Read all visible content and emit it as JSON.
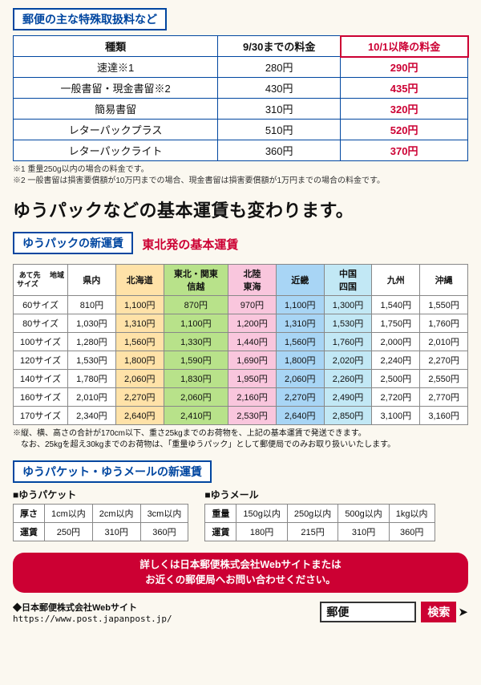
{
  "section1": {
    "title": "郵便の主な特殊取扱料など",
    "headers": [
      "種類",
      "9/30までの料金",
      "10/1以降の料金"
    ],
    "rows": [
      {
        "name": "速達※1",
        "before": "280円",
        "after": "290円"
      },
      {
        "name": "一般書留・現金書留※2",
        "before": "430円",
        "after": "435円"
      },
      {
        "name": "簡易書留",
        "before": "310円",
        "after": "320円"
      },
      {
        "name": "レターパックプラス",
        "before": "510円",
        "after": "520円"
      },
      {
        "name": "レターパックライト",
        "before": "360円",
        "after": "370円"
      }
    ],
    "note1": "※1 重量250g以内の場合の料金です。",
    "note2": "※2 一般書留は損害要償額が10万円までの場合、現金書留は損害要償額が1万円までの場合の料金です。"
  },
  "bigHeading": "ゆうパックなどの基本運賃も変わります。",
  "fare": {
    "title": "ゆうパックの新運賃",
    "subtitle": "東北発の基本運賃",
    "cornerTop": "あて先\n　地域",
    "cornerBottom": "サイズ",
    "regions": [
      "県内",
      "北海道",
      "東北・関東\n信越",
      "北陸\n東海",
      "近畿",
      "中国\n四国",
      "九州",
      "沖縄"
    ],
    "regionBg": [
      "",
      "bg-orange",
      "bg-green",
      "bg-pink",
      "bg-blue",
      "bg-cyan",
      "",
      ""
    ],
    "rows": [
      {
        "size": "60サイズ",
        "prices": [
          "810円",
          "1,100円",
          "870円",
          "970円",
          "1,100円",
          "1,300円",
          "1,540円",
          "1,550円"
        ]
      },
      {
        "size": "80サイズ",
        "prices": [
          "1,030円",
          "1,310円",
          "1,100円",
          "1,200円",
          "1,310円",
          "1,530円",
          "1,750円",
          "1,760円"
        ]
      },
      {
        "size": "100サイズ",
        "prices": [
          "1,280円",
          "1,560円",
          "1,330円",
          "1,440円",
          "1,560円",
          "1,760円",
          "2,000円",
          "2,010円"
        ]
      },
      {
        "size": "120サイズ",
        "prices": [
          "1,530円",
          "1,800円",
          "1,590円",
          "1,690円",
          "1,800円",
          "2,020円",
          "2,240円",
          "2,270円"
        ]
      },
      {
        "size": "140サイズ",
        "prices": [
          "1,780円",
          "2,060円",
          "1,830円",
          "1,950円",
          "2,060円",
          "2,260円",
          "2,500円",
          "2,550円"
        ]
      },
      {
        "size": "160サイズ",
        "prices": [
          "2,010円",
          "2,270円",
          "2,060円",
          "2,160円",
          "2,270円",
          "2,490円",
          "2,720円",
          "2,770円"
        ]
      },
      {
        "size": "170サイズ",
        "prices": [
          "2,340円",
          "2,640円",
          "2,410円",
          "2,530円",
          "2,640円",
          "2,850円",
          "3,100円",
          "3,160円"
        ]
      }
    ],
    "note1": "※縦、横、高さの合計が170cm以下、重さ25kgまでのお荷物を、上記の基本運賃で発送できます。",
    "note2": "　なお、25kgを超え30kgまでのお荷物は、「重量ゆうパック」として郵便局でのみお取り扱いいたします。"
  },
  "packet": {
    "title": "ゆうパケット・ゆうメールの新運賃",
    "left": {
      "label": "■ゆうパケット",
      "header": "厚さ",
      "cols": [
        "1cm以内",
        "2cm以内",
        "3cm以内"
      ],
      "rowLabel": "運賃",
      "prices": [
        "250円",
        "310円",
        "360円"
      ]
    },
    "right": {
      "label": "■ゆうメール",
      "header": "重量",
      "cols": [
        "150g以内",
        "250g以内",
        "500g以内",
        "1kg以内"
      ],
      "rowLabel": "運賃",
      "prices": [
        "180円",
        "215円",
        "310円",
        "360円"
      ]
    }
  },
  "redBar": {
    "line1": "詳しくは日本郵便株式会社Webサイトまたは",
    "line2": "お近くの郵便局へお問い合わせください。"
  },
  "footer": {
    "webLabel": "◆日本郵便株式会社Webサイト",
    "url": "https://www.post.japanpost.jp/",
    "searchText": "郵便",
    "searchBtn": "検索"
  }
}
